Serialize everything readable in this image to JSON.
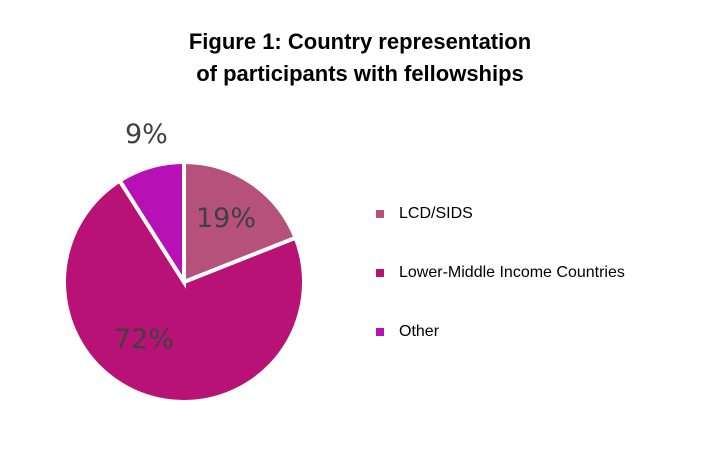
{
  "chart_data": {
    "type": "pie",
    "title": "Figure 1: Country representation of participants with fellowships",
    "title_lines": [
      "Figure 1: Country representation",
      "of participants with fellowships"
    ],
    "categories": [
      "LCD/SIDS",
      "Lower-Middle Income Countries",
      "Other"
    ],
    "values": [
      19,
      72,
      9
    ],
    "labels": [
      "19%",
      "72%",
      "9%"
    ],
    "colors": [
      "#b5517a",
      "#b81276",
      "#b710b4"
    ],
    "legend_position": "right",
    "start_angle_deg": 0,
    "direction": "clockwise"
  }
}
